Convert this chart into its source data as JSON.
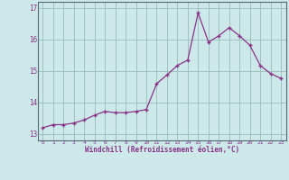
{
  "x": [
    0,
    1,
    2,
    3,
    4,
    5,
    6,
    7,
    8,
    9,
    10,
    11,
    12,
    13,
    14,
    15,
    16,
    17,
    18,
    19,
    20,
    21,
    22,
    23
  ],
  "y": [
    13.2,
    13.3,
    13.3,
    13.35,
    13.45,
    13.6,
    13.72,
    13.68,
    13.68,
    13.72,
    13.78,
    14.6,
    14.88,
    15.18,
    15.35,
    16.85,
    15.92,
    16.12,
    16.38,
    16.12,
    15.82,
    15.18,
    14.92,
    14.77
  ],
  "xlim": [
    -0.5,
    23.5
  ],
  "ylim": [
    12.8,
    17.2
  ],
  "yticks": [
    13,
    14,
    15,
    16,
    17
  ],
  "xticks": [
    0,
    1,
    2,
    3,
    4,
    5,
    6,
    7,
    8,
    9,
    10,
    11,
    12,
    13,
    14,
    15,
    16,
    17,
    18,
    19,
    20,
    21,
    22,
    23
  ],
  "xlabel": "Windchill (Refroidissement éolien,°C)",
  "line_color": "#883388",
  "marker": "P",
  "bg_color": "#cce8e8",
  "grid_color": "#99bbbb",
  "spine_color": "#556677",
  "tick_label_color": "#883388",
  "xlabel_color": "#883388"
}
